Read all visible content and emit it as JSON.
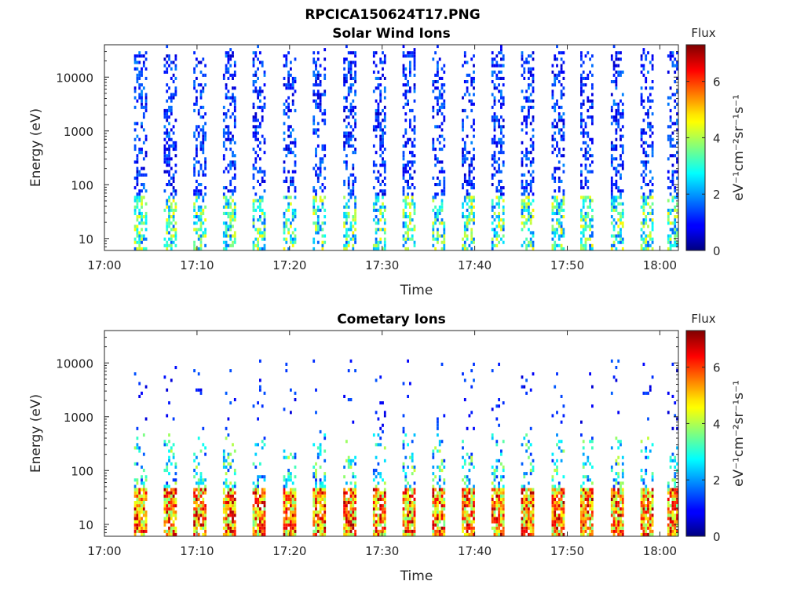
{
  "figure_title": "RPCICA150624T17.PNG",
  "colormap": "jet",
  "chart_data": [
    {
      "type": "heatmap",
      "title": "Solar Wind Ions",
      "xlabel": "Time",
      "ylabel": "Energy (eV)",
      "x_ticks": [
        "17:00",
        "17:10",
        "17:20",
        "17:30",
        "17:40",
        "17:50",
        "18:00"
      ],
      "xlim_minutes": [
        0,
        62
      ],
      "y_scale": "log",
      "y_ticks": [
        10,
        100,
        1000,
        10000
      ],
      "y_tick_labels": [
        "10",
        "100",
        "1000",
        "10000"
      ],
      "ylim": [
        6,
        40000
      ],
      "colorbar": {
        "title": "Flux",
        "label": "eV⁻¹cm⁻²sr⁻¹s⁻¹",
        "ticks": [
          "0",
          "2",
          "4",
          "6"
        ],
        "range": [
          0,
          7.3
        ]
      },
      "sweep_start_minutes": [
        3.2,
        6.4,
        9.6,
        12.8,
        16.0,
        19.3,
        22.5,
        25.8,
        29.0,
        32.2,
        35.4,
        38.6,
        41.8,
        45.0,
        48.3,
        51.4,
        54.7,
        57.9,
        60.8
      ],
      "sweep_width_minutes": 1.3,
      "profile": "sparse low-flux counts (0.5-2) from 10 eV to 30000 eV; higher flux (2-5) below ~60 eV"
    },
    {
      "type": "heatmap",
      "title": "Cometary Ions",
      "xlabel": "Time",
      "ylabel": "Energy (eV)",
      "x_ticks": [
        "17:00",
        "17:10",
        "17:20",
        "17:30",
        "17:40",
        "17:50",
        "18:00"
      ],
      "xlim_minutes": [
        0,
        62
      ],
      "y_scale": "log",
      "y_ticks": [
        10,
        100,
        1000,
        10000
      ],
      "y_tick_labels": [
        "10",
        "100",
        "1000",
        "10000"
      ],
      "ylim": [
        6,
        40000
      ],
      "colorbar": {
        "title": "Flux",
        "label": "eV⁻¹cm⁻²sr⁻¹s⁻¹",
        "ticks": [
          "0",
          "2",
          "4",
          "6"
        ],
        "range": [
          0,
          7.3
        ]
      },
      "sweep_start_minutes": [
        3.2,
        6.4,
        9.6,
        12.8,
        16.0,
        19.3,
        22.5,
        25.8,
        29.0,
        32.2,
        35.4,
        38.6,
        41.8,
        45.0,
        48.3,
        51.4,
        54.7,
        57.9,
        60.8
      ],
      "sweep_width_minutes": 1.3,
      "profile": "intense flux (4-7) between ~10 and ~45 eV, moderate (2-4) up to ~500 eV, sparse dots up to 10000 eV"
    }
  ]
}
